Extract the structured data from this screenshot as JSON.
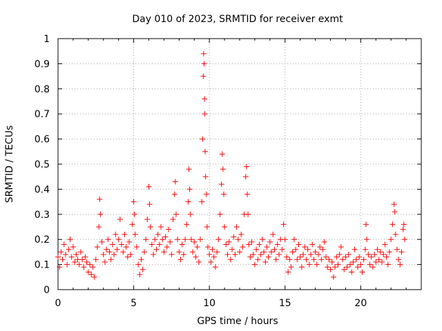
{
  "chart_data": {
    "type": "scatter",
    "title": "Day 010 of 2023, SRMTID for receiver exmt",
    "xlabel": "GPS time / hours",
    "ylabel": "SRMTID / TECUs",
    "xlim": [
      0,
      24
    ],
    "ylim": [
      0,
      1
    ],
    "xticks": [
      0,
      5,
      10,
      15,
      20
    ],
    "xtick_labels": [
      "0",
      "5",
      "10",
      "15",
      "20"
    ],
    "yticks": [
      0,
      0.1,
      0.2,
      0.3,
      0.4,
      0.5,
      0.6,
      0.7,
      0.8,
      0.9,
      1
    ],
    "ytick_labels": [
      "0",
      "0.1",
      "0.2",
      "0.3",
      "0.4",
      "0.5",
      "0.6",
      "0.7",
      "0.8",
      "0.9",
      "1"
    ],
    "grid": true,
    "marker": "+",
    "marker_color": "#ff0000",
    "series": [
      {
        "name": "SRMTID",
        "points": [
          [
            0.0,
            0.13
          ],
          [
            0.1,
            0.09
          ],
          [
            0.2,
            0.15
          ],
          [
            0.3,
            0.12
          ],
          [
            0.4,
            0.18
          ],
          [
            0.5,
            0.14
          ],
          [
            0.6,
            0.1
          ],
          [
            0.7,
            0.16
          ],
          [
            0.8,
            0.2
          ],
          [
            0.9,
            0.13
          ],
          [
            1.0,
            0.17
          ],
          [
            1.1,
            0.11
          ],
          [
            1.2,
            0.14
          ],
          [
            1.3,
            0.12
          ],
          [
            1.4,
            0.1
          ],
          [
            1.5,
            0.15
          ],
          [
            1.6,
            0.12
          ],
          [
            1.7,
            0.09
          ],
          [
            1.8,
            0.13
          ],
          [
            1.9,
            0.11
          ],
          [
            2.0,
            0.07
          ],
          [
            2.1,
            0.1
          ],
          [
            2.2,
            0.06
          ],
          [
            2.3,
            0.09
          ],
          [
            2.4,
            0.05
          ],
          [
            2.5,
            0.12
          ],
          [
            2.6,
            0.17
          ],
          [
            2.7,
            0.25
          ],
          [
            2.75,
            0.36
          ],
          [
            2.8,
            0.3
          ],
          [
            2.9,
            0.19
          ],
          [
            3.0,
            0.14
          ],
          [
            3.1,
            0.11
          ],
          [
            3.2,
            0.16
          ],
          [
            3.3,
            0.2
          ],
          [
            3.4,
            0.15
          ],
          [
            3.5,
            0.12
          ],
          [
            3.6,
            0.18
          ],
          [
            3.7,
            0.14
          ],
          [
            3.8,
            0.22
          ],
          [
            3.9,
            0.16
          ],
          [
            4.0,
            0.2
          ],
          [
            4.1,
            0.28
          ],
          [
            4.2,
            0.18
          ],
          [
            4.3,
            0.15
          ],
          [
            4.4,
            0.22
          ],
          [
            4.5,
            0.17
          ],
          [
            4.6,
            0.13
          ],
          [
            4.7,
            0.19
          ],
          [
            4.8,
            0.14
          ],
          [
            4.9,
            0.26
          ],
          [
            5.0,
            0.35
          ],
          [
            5.05,
            0.3
          ],
          [
            5.1,
            0.22
          ],
          [
            5.2,
            0.17
          ],
          [
            5.3,
            0.1
          ],
          [
            5.4,
            0.06
          ],
          [
            5.5,
            0.12
          ],
          [
            5.6,
            0.08
          ],
          [
            5.7,
            0.15
          ],
          [
            5.8,
            0.2
          ],
          [
            5.9,
            0.28
          ],
          [
            6.0,
            0.41
          ],
          [
            6.05,
            0.34
          ],
          [
            6.1,
            0.25
          ],
          [
            6.2,
            0.18
          ],
          [
            6.3,
            0.14
          ],
          [
            6.4,
            0.2
          ],
          [
            6.5,
            0.16
          ],
          [
            6.6,
            0.22
          ],
          [
            6.7,
            0.18
          ],
          [
            6.8,
            0.25
          ],
          [
            6.9,
            0.2
          ],
          [
            7.0,
            0.15
          ],
          [
            7.1,
            0.21
          ],
          [
            7.2,
            0.17
          ],
          [
            7.3,
            0.24
          ],
          [
            7.4,
            0.19
          ],
          [
            7.5,
            0.14
          ],
          [
            7.6,
            0.28
          ],
          [
            7.7,
            0.38
          ],
          [
            7.75,
            0.43
          ],
          [
            7.8,
            0.3
          ],
          [
            7.9,
            0.2
          ],
          [
            8.0,
            0.15
          ],
          [
            8.1,
            0.12
          ],
          [
            8.2,
            0.18
          ],
          [
            8.3,
            0.14
          ],
          [
            8.4,
            0.2
          ],
          [
            8.5,
            0.26
          ],
          [
            8.6,
            0.35
          ],
          [
            8.65,
            0.48
          ],
          [
            8.7,
            0.4
          ],
          [
            8.75,
            0.3
          ],
          [
            8.8,
            0.2
          ],
          [
            8.9,
            0.15
          ],
          [
            9.0,
            0.19
          ],
          [
            9.1,
            0.13
          ],
          [
            9.2,
            0.17
          ],
          [
            9.3,
            0.11
          ],
          [
            9.4,
            0.2
          ],
          [
            9.5,
            0.35
          ],
          [
            9.55,
            0.6
          ],
          [
            9.6,
            0.85
          ],
          [
            9.62,
            0.94
          ],
          [
            9.65,
            0.9
          ],
          [
            9.68,
            0.76
          ],
          [
            9.7,
            0.7
          ],
          [
            9.72,
            0.55
          ],
          [
            9.75,
            0.45
          ],
          [
            9.8,
            0.38
          ],
          [
            9.85,
            0.25
          ],
          [
            9.9,
            0.17
          ],
          [
            10.0,
            0.14
          ],
          [
            10.1,
            0.11
          ],
          [
            10.2,
            0.16
          ],
          [
            10.3,
            0.13
          ],
          [
            10.4,
            0.09
          ],
          [
            10.5,
            0.15
          ],
          [
            10.6,
            0.2
          ],
          [
            10.7,
            0.3
          ],
          [
            10.8,
            0.42
          ],
          [
            10.85,
            0.54
          ],
          [
            10.9,
            0.48
          ],
          [
            10.95,
            0.38
          ],
          [
            11.0,
            0.25
          ],
          [
            11.1,
            0.18
          ],
          [
            11.2,
            0.14
          ],
          [
            11.3,
            0.19
          ],
          [
            11.4,
            0.12
          ],
          [
            11.5,
            0.16
          ],
          [
            11.6,
            0.21
          ],
          [
            11.7,
            0.14
          ],
          [
            11.8,
            0.25
          ],
          [
            11.9,
            0.2
          ],
          [
            12.0,
            0.15
          ],
          [
            12.1,
            0.22
          ],
          [
            12.2,
            0.17
          ],
          [
            12.3,
            0.3
          ],
          [
            12.4,
            0.45
          ],
          [
            12.45,
            0.49
          ],
          [
            12.5,
            0.38
          ],
          [
            12.55,
            0.3
          ],
          [
            12.6,
            0.18
          ],
          [
            12.7,
            0.13
          ],
          [
            12.8,
            0.19
          ],
          [
            12.9,
            0.14
          ],
          [
            13.0,
            0.1
          ],
          [
            13.1,
            0.16
          ],
          [
            13.2,
            0.12
          ],
          [
            13.3,
            0.18
          ],
          [
            13.4,
            0.14
          ],
          [
            13.5,
            0.2
          ],
          [
            13.6,
            0.15
          ],
          [
            13.7,
            0.11
          ],
          [
            13.8,
            0.17
          ],
          [
            13.9,
            0.13
          ],
          [
            14.0,
            0.19
          ],
          [
            14.1,
            0.15
          ],
          [
            14.2,
            0.22
          ],
          [
            14.3,
            0.16
          ],
          [
            14.4,
            0.12
          ],
          [
            14.5,
            0.18
          ],
          [
            14.6,
            0.14
          ],
          [
            14.7,
            0.2
          ],
          [
            14.8,
            0.16
          ],
          [
            14.9,
            0.26
          ],
          [
            15.0,
            0.2
          ],
          [
            15.1,
            0.13
          ],
          [
            15.2,
            0.07
          ],
          [
            15.3,
            0.12
          ],
          [
            15.4,
            0.09
          ],
          [
            15.5,
            0.15
          ],
          [
            15.6,
            0.2
          ],
          [
            15.7,
            0.16
          ],
          [
            15.8,
            0.12
          ],
          [
            15.9,
            0.18
          ],
          [
            16.0,
            0.13
          ],
          [
            16.1,
            0.09
          ],
          [
            16.2,
            0.14
          ],
          [
            16.3,
            0.17
          ],
          [
            16.4,
            0.12
          ],
          [
            16.5,
            0.16
          ],
          [
            16.6,
            0.1
          ],
          [
            16.7,
            0.14
          ],
          [
            16.8,
            0.18
          ],
          [
            16.9,
            0.12
          ],
          [
            17.0,
            0.15
          ],
          [
            17.1,
            0.1
          ],
          [
            17.2,
            0.14
          ],
          [
            17.3,
            0.17
          ],
          [
            17.4,
            0.12
          ],
          [
            17.5,
            0.16
          ],
          [
            17.6,
            0.19
          ],
          [
            17.7,
            0.13
          ],
          [
            17.8,
            0.09
          ],
          [
            17.9,
            0.12
          ],
          [
            18.0,
            0.08
          ],
          [
            18.1,
            0.11
          ],
          [
            18.2,
            0.05
          ],
          [
            18.3,
            0.09
          ],
          [
            18.4,
            0.13
          ],
          [
            18.5,
            0.1
          ],
          [
            18.6,
            0.14
          ],
          [
            18.7,
            0.17
          ],
          [
            18.8,
            0.12
          ],
          [
            18.9,
            0.08
          ],
          [
            19.0,
            0.13
          ],
          [
            19.1,
            0.09
          ],
          [
            19.2,
            0.14
          ],
          [
            19.3,
            0.1
          ],
          [
            19.4,
            0.07
          ],
          [
            19.5,
            0.11
          ],
          [
            19.6,
            0.16
          ],
          [
            19.7,
            0.12
          ],
          [
            19.8,
            0.09
          ],
          [
            19.9,
            0.13
          ],
          [
            20.0,
            0.1
          ],
          [
            20.1,
            0.07
          ],
          [
            20.2,
            0.12
          ],
          [
            20.3,
            0.16
          ],
          [
            20.35,
            0.26
          ],
          [
            20.4,
            0.2
          ],
          [
            20.5,
            0.14
          ],
          [
            20.6,
            0.1
          ],
          [
            20.7,
            0.13
          ],
          [
            20.8,
            0.09
          ],
          [
            20.9,
            0.14
          ],
          [
            21.0,
            0.11
          ],
          [
            21.1,
            0.16
          ],
          [
            21.2,
            0.12
          ],
          [
            21.3,
            0.15
          ],
          [
            21.4,
            0.11
          ],
          [
            21.5,
            0.14
          ],
          [
            21.6,
            0.18
          ],
          [
            21.7,
            0.13
          ],
          [
            21.8,
            0.1
          ],
          [
            21.9,
            0.15
          ],
          [
            22.0,
            0.2
          ],
          [
            22.1,
            0.26
          ],
          [
            22.2,
            0.34
          ],
          [
            22.25,
            0.31
          ],
          [
            22.3,
            0.22
          ],
          [
            22.4,
            0.16
          ],
          [
            22.5,
            0.12
          ],
          [
            22.6,
            0.1
          ],
          [
            22.7,
            0.15
          ],
          [
            22.8,
            0.24
          ],
          [
            22.85,
            0.26
          ],
          [
            22.9,
            0.2
          ]
        ]
      }
    ]
  }
}
